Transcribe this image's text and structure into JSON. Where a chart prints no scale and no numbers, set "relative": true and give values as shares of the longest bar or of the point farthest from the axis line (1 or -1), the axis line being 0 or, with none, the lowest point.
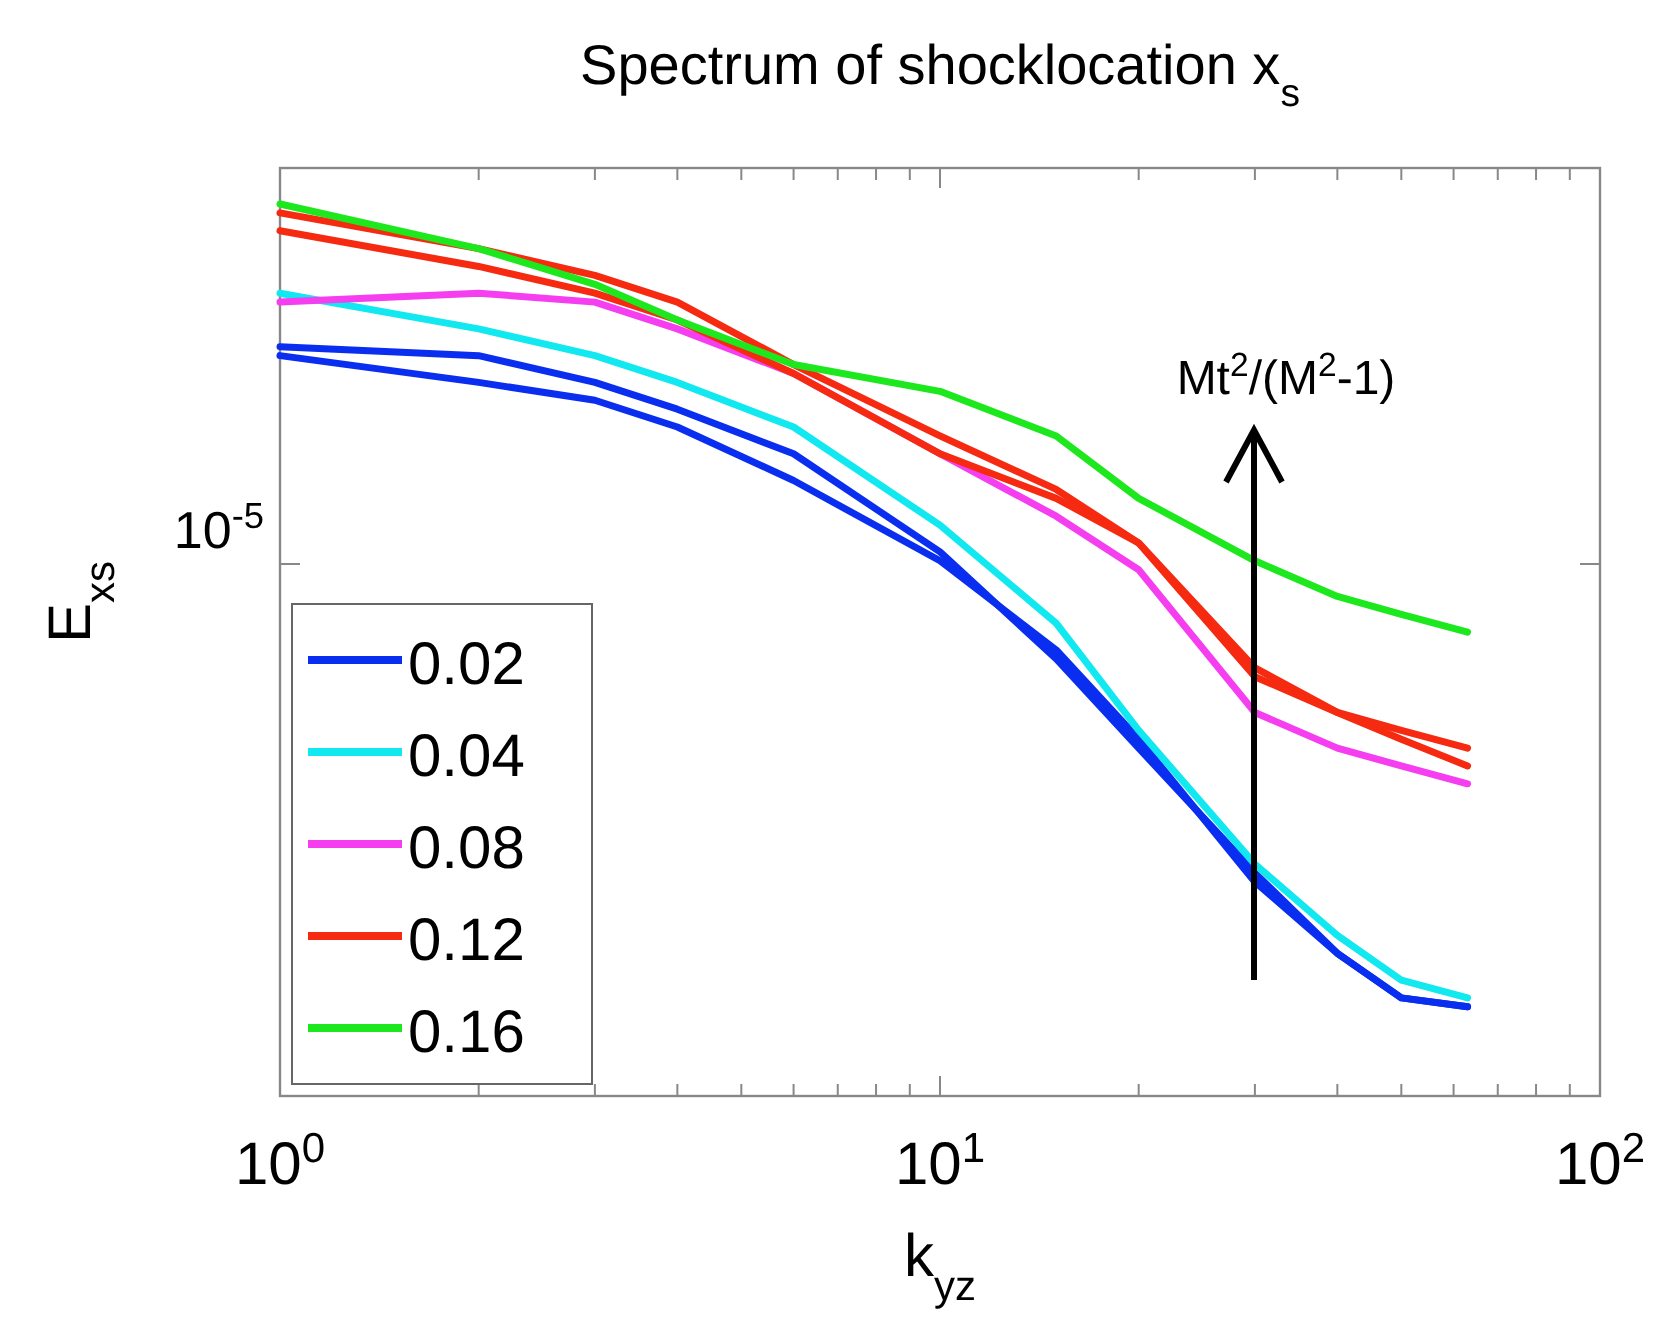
{
  "chart_data": {
    "type": "line",
    "title": "Spectrum of shocklocation x$_{s}$",
    "xlabel": "k$_{yz}$",
    "ylabel": "E$_{xs}$",
    "relative": true,
    "log": "x",
    "legend": "bottom left",
    "grid": false,
    "line_style": "solid",
    "x": [
      1,
      2,
      3,
      4,
      6,
      10,
      15,
      20,
      30,
      40,
      50,
      63
    ],
    "xlim": [
      1,
      100
    ],
    "xticks": [
      {
        "value": 1,
        "label": "10$^{0}$"
      },
      {
        "value": 2,
        "label": null
      },
      {
        "value": 3,
        "label": null
      },
      {
        "value": 4,
        "label": null
      },
      {
        "value": 5,
        "label": null
      },
      {
        "value": 6,
        "label": null
      },
      {
        "value": 7,
        "label": null
      },
      {
        "value": 8,
        "label": null
      },
      {
        "value": 9,
        "label": null
      },
      {
        "value": 10,
        "label": "10$^{1}$"
      },
      {
        "value": 20,
        "label": null
      },
      {
        "value": 30,
        "label": null
      },
      {
        "value": 40,
        "label": null
      },
      {
        "value": 50,
        "label": null
      },
      {
        "value": 60,
        "label": null
      },
      {
        "value": 70,
        "label": null
      },
      {
        "value": 80,
        "label": null
      },
      {
        "value": 90,
        "label": null
      },
      {
        "value": 100,
        "label": "10$^{2}$"
      }
    ],
    "series": [
      {
        "name": "0.02",
        "color": "#0a2ef0",
        "values": [
          0.84,
          0.83,
          0.8,
          0.77,
          0.72,
          0.61,
          0.49,
          0.39,
          0.25,
          0.16,
          0.11,
          0.1
        ]
      },
      {
        "color": "#0a2ef0",
        "values": [
          0.83,
          0.8,
          0.78,
          0.75,
          0.69,
          0.6,
          0.5,
          0.4,
          0.24,
          0.16,
          0.11,
          0.1
        ]
      },
      {
        "name": "0.04",
        "color": "#11e8f0",
        "values": [
          0.9,
          0.86,
          0.83,
          0.8,
          0.75,
          0.64,
          0.53,
          0.41,
          0.26,
          0.18,
          0.13,
          0.11
        ]
      },
      {
        "name": "0.08",
        "color": "#f53ef0",
        "values": [
          0.89,
          0.9,
          0.89,
          0.86,
          0.81,
          0.72,
          0.65,
          0.59,
          0.43,
          0.39,
          0.37,
          0.35
        ]
      },
      {
        "name": "0.12",
        "color": "#f52a10",
        "values": [
          0.99,
          0.95,
          0.92,
          0.89,
          0.82,
          0.74,
          0.68,
          0.62,
          0.48,
          0.43,
          0.41,
          0.39
        ]
      },
      {
        "color": "#f52a10",
        "values": [
          0.97,
          0.93,
          0.9,
          0.87,
          0.81,
          0.72,
          0.67,
          0.62,
          0.47,
          0.43,
          0.4,
          0.37
        ]
      },
      {
        "name": "0.16",
        "color": "#1de81d",
        "values": [
          1.0,
          0.95,
          0.91,
          0.87,
          0.82,
          0.79,
          0.74,
          0.67,
          0.6,
          0.56,
          0.54,
          0.52
        ]
      }
    ],
    "annotations": [
      "10$^{-5}$",
      "Mt$^{2}$/(M$^{2}$-1)"
    ]
  }
}
